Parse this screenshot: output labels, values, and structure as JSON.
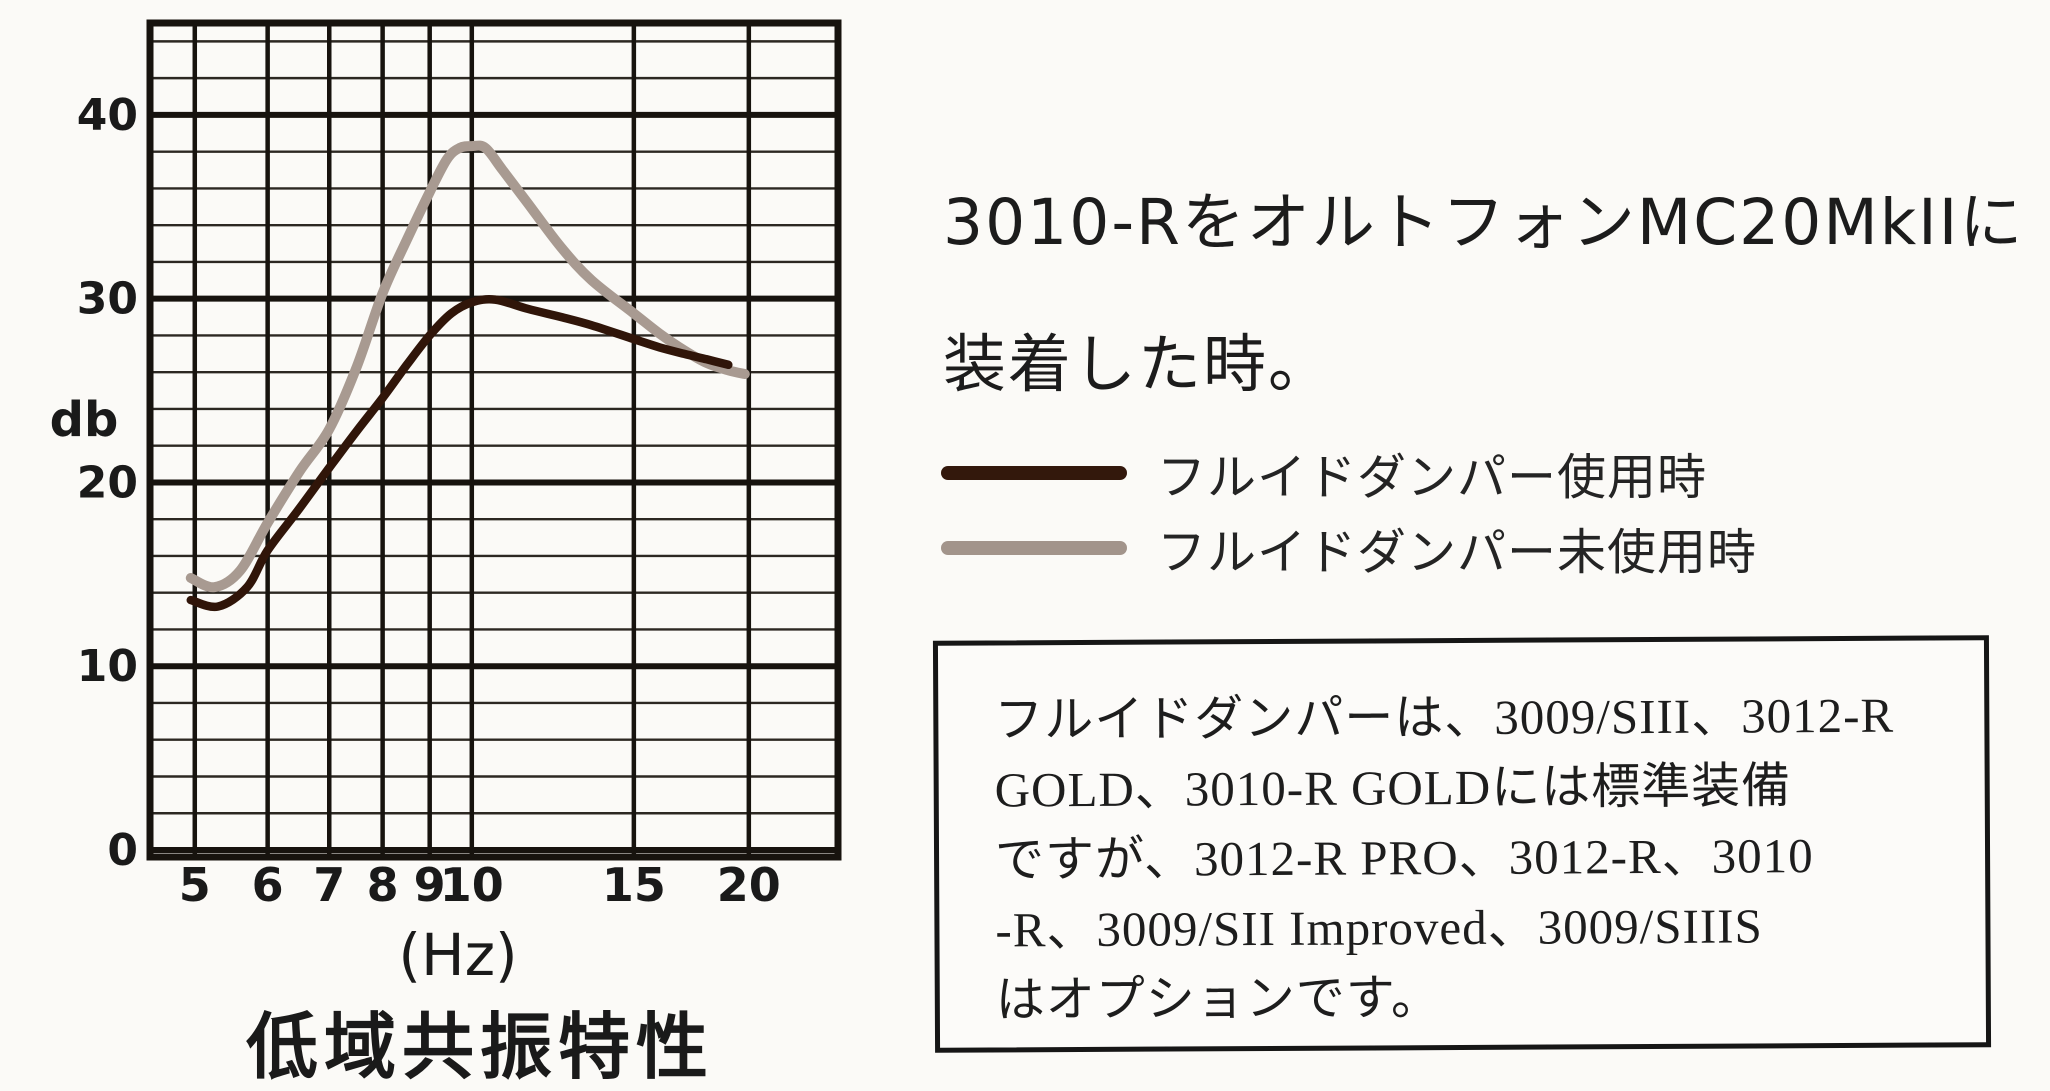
{
  "page": {
    "background": "#fbfaf7"
  },
  "heading": {
    "line1": "3010-RをオルトフォンMC20MkIIに",
    "line2": "装着した時。"
  },
  "legend": [
    {
      "name": "with-damper",
      "label": "フルイドダンパー使用時",
      "color": "#33180c"
    },
    {
      "name": "without-damper",
      "label": "フルイドダンパー未使用時",
      "color": "#a2948b"
    }
  ],
  "note_box": {
    "lines": [
      "フルイドダンパーは、3009/SIII、3012-R",
      "GOLD、3010-R GOLDには標準装備",
      "ですが、3012-R PRO、3012-R、3010",
      "-R、3009/SII Improved、3009/SIIIS",
      "はオプションです。"
    ]
  },
  "chart_data": {
    "type": "line",
    "title": "低域共振特性",
    "xlabel": "(Hz)",
    "ylabel": "db",
    "x_scale": "log",
    "xlim": [
      4.47,
      25
    ],
    "ylim": [
      0,
      45
    ],
    "x_ticks": [
      5,
      6,
      7,
      8,
      9,
      10,
      15,
      20
    ],
    "y_ticks": [
      0,
      10,
      20,
      30,
      40
    ],
    "y_minor_step": 2,
    "grid": true,
    "grid_color": "#17130e",
    "legend_position": "right",
    "series": [
      {
        "name": "フルイドダンパー未使用時",
        "color": "#a89a91",
        "width": 10,
        "points": [
          [
            4.95,
            14.8
          ],
          [
            5.25,
            14.3
          ],
          [
            5.6,
            15.2
          ],
          [
            6,
            17.8
          ],
          [
            6.5,
            20.6
          ],
          [
            7,
            22.9
          ],
          [
            7.5,
            26.3
          ],
          [
            8,
            30.3
          ],
          [
            8.5,
            33.2
          ],
          [
            9,
            35.8
          ],
          [
            9.4,
            37.6
          ],
          [
            9.7,
            38.2
          ],
          [
            10,
            38.3
          ],
          [
            10.35,
            38.2
          ],
          [
            10.8,
            37.0
          ],
          [
            11.5,
            35.2
          ],
          [
            12.5,
            32.8
          ],
          [
            13.5,
            31.0
          ],
          [
            15,
            29.2
          ],
          [
            16,
            28.1
          ],
          [
            17,
            27.2
          ],
          [
            18,
            26.5
          ],
          [
            19,
            26.1
          ],
          [
            19.8,
            25.9
          ]
        ]
      },
      {
        "name": "フルイドダンパー使用時",
        "color": "#301509",
        "width": 8.5,
        "points": [
          [
            4.95,
            13.6
          ],
          [
            5.3,
            13.25
          ],
          [
            5.7,
            14.3
          ],
          [
            6,
            16.3
          ],
          [
            6.5,
            18.6
          ],
          [
            7,
            20.8
          ],
          [
            7.5,
            22.8
          ],
          [
            8,
            24.6
          ],
          [
            8.5,
            26.4
          ],
          [
            9,
            28.0
          ],
          [
            9.5,
            29.2
          ],
          [
            10,
            29.8
          ],
          [
            10.6,
            29.95
          ],
          [
            11.5,
            29.45
          ],
          [
            12.5,
            29.0
          ],
          [
            13.5,
            28.55
          ],
          [
            15,
            27.8
          ],
          [
            16,
            27.35
          ],
          [
            17,
            27.0
          ],
          [
            18,
            26.7
          ],
          [
            19,
            26.4
          ]
        ]
      }
    ]
  }
}
